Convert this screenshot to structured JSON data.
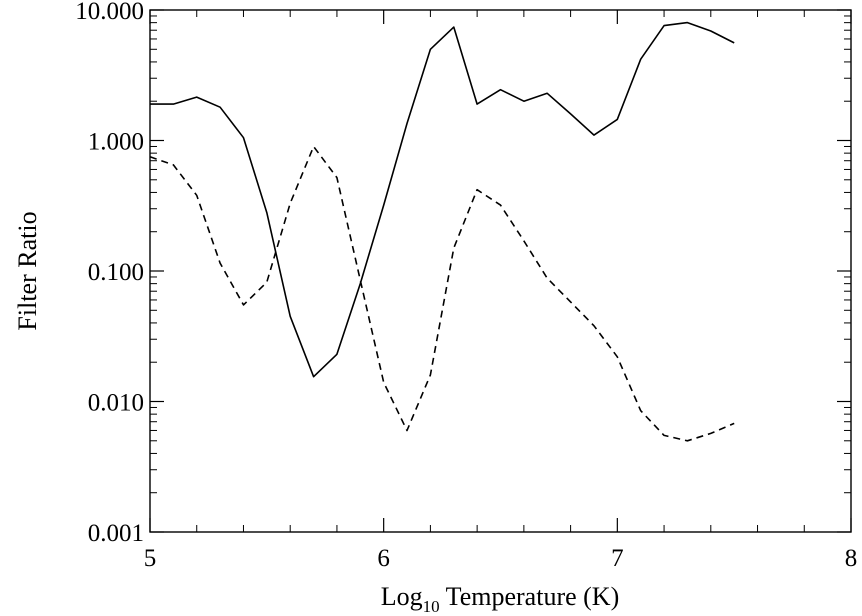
{
  "chart_data": {
    "type": "line",
    "xlabel": "Log10 Temperature (K)",
    "xlabel_parts": {
      "before_sub": "Log",
      "subscript": "10",
      "after_sub": " Temperature (K)"
    },
    "ylabel": "Filter Ratio",
    "xlim": [
      5,
      8
    ],
    "ylim": [
      0.001,
      10
    ],
    "yscale": "log",
    "grid": false,
    "x_ticks": [
      5,
      6,
      7,
      8
    ],
    "x_tick_labels": [
      "5",
      "6",
      "7",
      "8"
    ],
    "y_ticks": [
      0.001,
      0.01,
      0.1,
      1,
      10
    ],
    "y_tick_labels": [
      "0.001",
      "0.010",
      "0.100",
      "1.000",
      "10.000"
    ],
    "series": [
      {
        "style": "solid",
        "x": [
          5.0,
          5.1,
          5.2,
          5.3,
          5.4,
          5.5,
          5.6,
          5.7,
          5.8,
          5.9,
          6.0,
          6.1,
          6.2,
          6.3,
          6.4,
          6.5,
          6.6,
          6.7,
          6.8,
          6.9,
          7.0,
          7.1,
          7.2,
          7.3,
          7.4,
          7.5
        ],
        "y": [
          1.9,
          1.9,
          2.15,
          1.8,
          1.05,
          0.28,
          0.045,
          0.0155,
          0.023,
          0.08,
          0.32,
          1.35,
          5.0,
          7.4,
          1.9,
          2.45,
          2.0,
          2.3,
          1.6,
          1.1,
          1.45,
          4.2,
          7.6,
          8.0,
          6.9,
          5.6
        ]
      },
      {
        "style": "dashed",
        "x": [
          5.0,
          5.1,
          5.2,
          5.3,
          5.4,
          5.5,
          5.6,
          5.7,
          5.8,
          5.9,
          6.0,
          6.1,
          6.2,
          6.3,
          6.4,
          6.5,
          6.6,
          6.7,
          6.8,
          6.9,
          7.0,
          7.1,
          7.2,
          7.3,
          7.4,
          7.5
        ],
        "y": [
          0.75,
          0.65,
          0.38,
          0.115,
          0.055,
          0.082,
          0.33,
          0.9,
          0.52,
          0.085,
          0.014,
          0.006,
          0.016,
          0.15,
          0.42,
          0.32,
          0.17,
          0.088,
          0.058,
          0.038,
          0.022,
          0.0085,
          0.0055,
          0.005,
          0.0057,
          0.0068
        ]
      }
    ]
  }
}
